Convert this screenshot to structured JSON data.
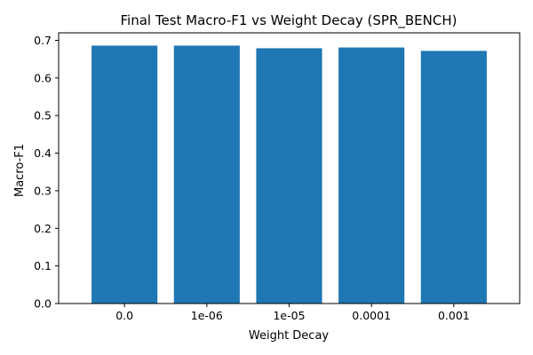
{
  "chart_data": {
    "type": "bar",
    "title": "Final Test Macro-F1 vs Weight Decay (SPR_BENCH)",
    "xlabel": "Weight Decay",
    "ylabel": "Macro-F1",
    "categories": [
      "0.0",
      "1e-06",
      "1e-05",
      "0.0001",
      "0.001"
    ],
    "values": [
      0.686,
      0.686,
      0.679,
      0.681,
      0.672
    ],
    "ylim": [
      0,
      0.72
    ],
    "yticks": [
      "0.0",
      "0.1",
      "0.2",
      "0.3",
      "0.4",
      "0.5",
      "0.6",
      "0.7"
    ],
    "bar_color": "#1f77b4",
    "grid": false
  }
}
